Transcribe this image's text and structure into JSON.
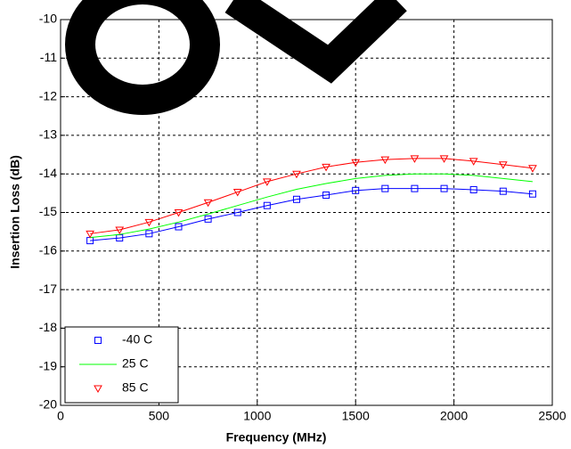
{
  "chart_data": {
    "type": "line",
    "xlabel": "Frequency (MHz)",
    "ylabel": "Insertion Loss (dB)",
    "x": [
      150,
      300,
      450,
      600,
      750,
      900,
      1050,
      1200,
      1350,
      1500,
      1650,
      1800,
      1950,
      2100,
      2250,
      2400
    ],
    "series": [
      {
        "name": "-40 C",
        "color": "#0000ff",
        "marker": "square",
        "values": [
          -15.73,
          -15.66,
          -15.55,
          -15.37,
          -15.17,
          -15.0,
          -14.82,
          -14.66,
          -14.55,
          -14.43,
          -14.38,
          -14.38,
          -14.38,
          -14.41,
          -14.45,
          -14.52
        ]
      },
      {
        "name": "25 C",
        "color": "#00ff00",
        "marker": "none",
        "values": [
          -15.65,
          -15.57,
          -15.43,
          -15.25,
          -15.04,
          -14.82,
          -14.6,
          -14.4,
          -14.25,
          -14.12,
          -14.04,
          -14.0,
          -14.0,
          -14.04,
          -14.12,
          -14.2
        ]
      },
      {
        "name": "85 C",
        "color": "#ff0000",
        "marker": "triangle-down",
        "values": [
          -15.55,
          -15.45,
          -15.25,
          -15.0,
          -14.74,
          -14.47,
          -14.2,
          -14.0,
          -13.82,
          -13.7,
          -13.63,
          -13.6,
          -13.6,
          -13.67,
          -13.76,
          -13.85
        ]
      }
    ],
    "xlim": [
      0,
      2500
    ],
    "xticks": [
      0,
      500,
      1000,
      1500,
      2000,
      2500
    ],
    "ylim": [
      -20,
      -10
    ],
    "yticks": [
      -20,
      -19,
      -18,
      -17,
      -16,
      -15,
      -14,
      -13,
      -12,
      -11,
      -10
    ],
    "grid": true,
    "legend": "lower left"
  }
}
